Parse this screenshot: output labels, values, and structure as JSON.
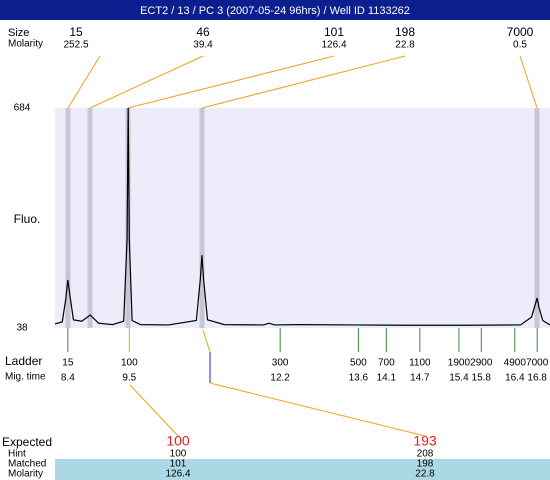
{
  "title": "ECT2 / 13 / PC 3 (2007-05-24 96hrs) / Well ID 1133262",
  "top_peaks": {
    "labels": [
      "Size",
      "Molarity"
    ],
    "sizes": [
      15,
      46,
      101,
      198,
      7000
    ],
    "molarity": [
      252.5,
      39.4,
      126.4,
      22.8,
      0.5
    ]
  },
  "chart_data": {
    "type": "line",
    "ylabel": "Fluo.",
    "color": "#000000",
    "x": [
      8.17,
      8.3,
      8.36,
      8.4,
      8.44,
      8.5,
      8.65,
      8.8,
      8.95,
      9.2,
      9.4,
      9.46,
      9.48,
      9.5,
      9.55,
      9.7,
      10.2,
      10.7,
      10.77,
      10.8,
      10.83,
      10.9,
      11.2,
      11.9,
      12.0,
      12.1,
      12.5,
      13.5,
      14.5,
      15.5,
      16.5,
      16.7,
      16.78,
      16.8,
      16.83,
      16.9,
      17.03
    ],
    "values": [
      50,
      56,
      120,
      179,
      130,
      62,
      58,
      76,
      52,
      48,
      58,
      300,
      684,
      300,
      60,
      48,
      47,
      60,
      180,
      252,
      180,
      62,
      48,
      47,
      52,
      47,
      48,
      47,
      46,
      46,
      47,
      70,
      115,
      126,
      100,
      60,
      47
    ],
    "xlim": [
      8.17,
      17.03
    ],
    "ylim": [
      38,
      684
    ],
    "yticks": [
      684,
      38
    ]
  },
  "ladder": {
    "labels": [
      "Ladder",
      "Mig. time"
    ],
    "sizes": [
      15,
      100,
      300,
      500,
      700,
      1100,
      1900,
      2900,
      4900,
      7000
    ],
    "mig_times": [
      8.4,
      9.5,
      12.2,
      13.6,
      14.1,
      14.7,
      15.4,
      15.8,
      16.4,
      16.8
    ]
  },
  "table": {
    "row_labels": [
      "Expected",
      "Hint",
      "Matched",
      "Molarity"
    ],
    "columns": [
      [
        100,
        100,
        101,
        126.4
      ],
      [
        193,
        208,
        198,
        22.8
      ]
    ]
  }
}
